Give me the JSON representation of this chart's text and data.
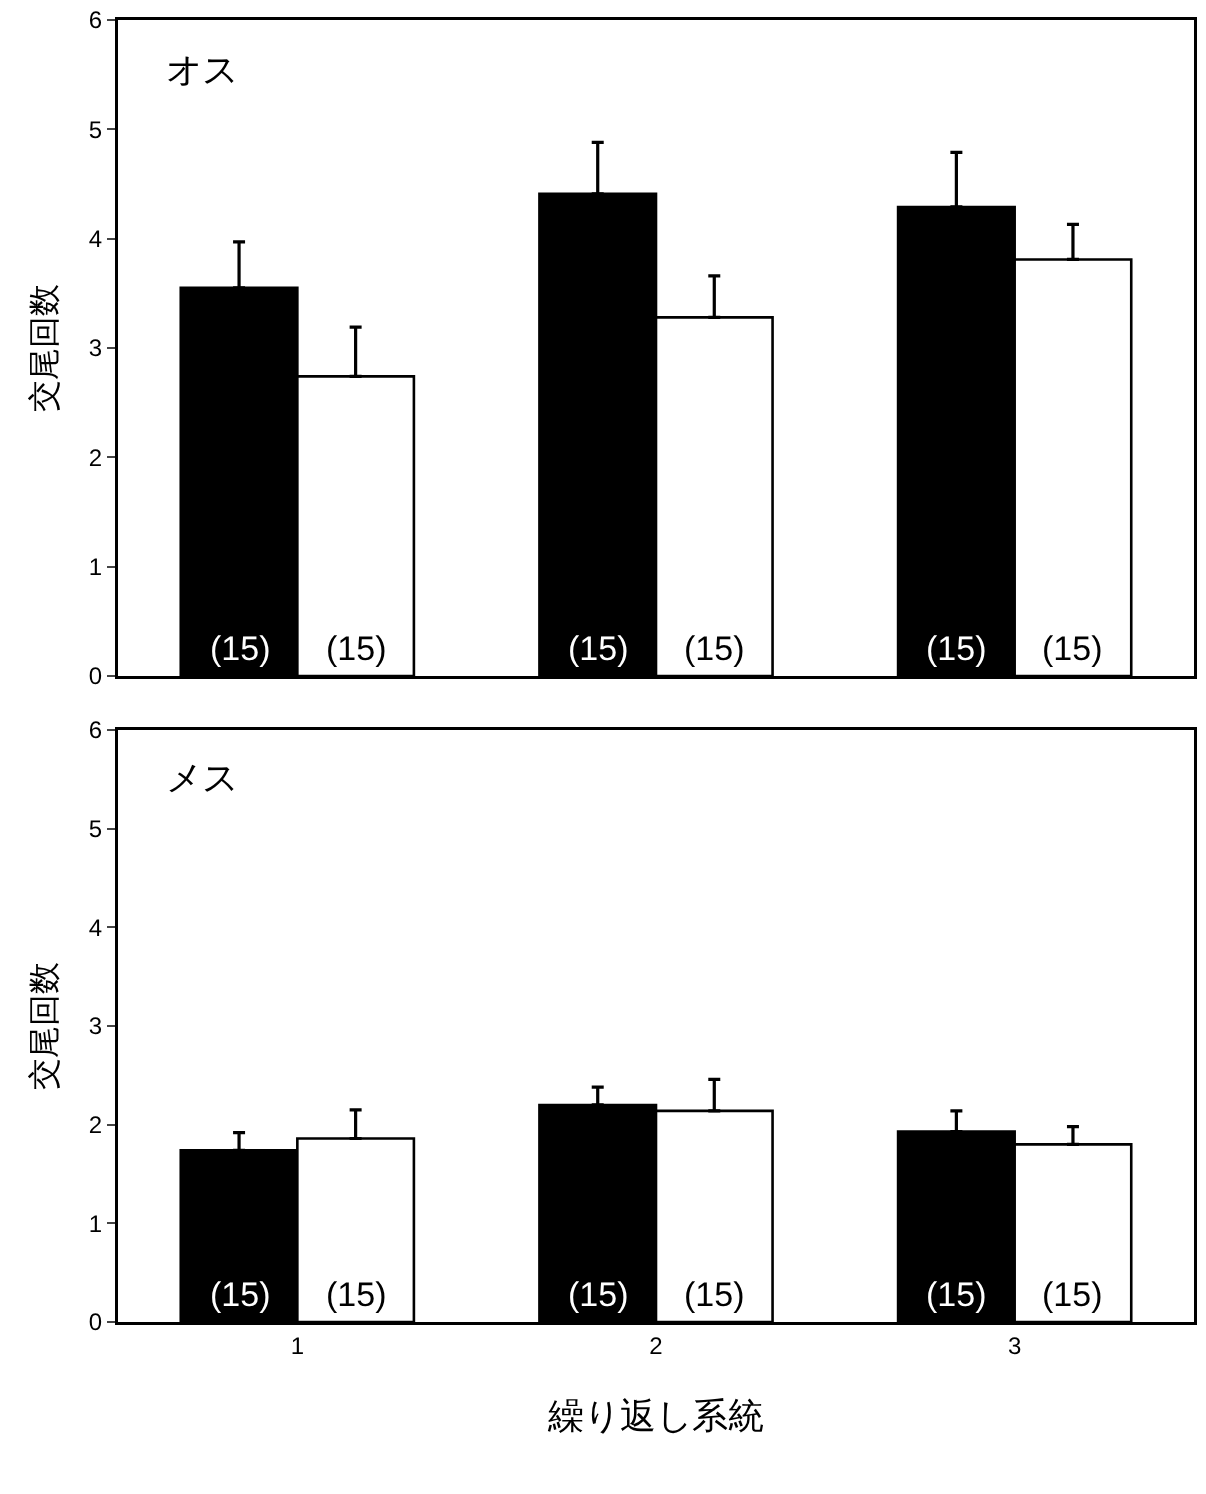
{
  "chart_data": [
    {
      "type": "bar",
      "title": "オス",
      "ylabel": "交尾回数",
      "categories": [
        "1",
        "2",
        "3"
      ],
      "ylim": [
        0,
        6
      ],
      "yticks": [
        0,
        1,
        2,
        3,
        4,
        5,
        6
      ],
      "tick_labels": "y",
      "series": [
        {
          "color": "#000000",
          "values": [
            3.55,
            4.41,
            4.29
          ],
          "errors": [
            [
              3.55,
              3.97
            ],
            [
              4.41,
              4.88
            ],
            [
              4.29,
              4.79
            ]
          ]
        },
        {
          "color": "#ffffff",
          "values": [
            2.74,
            3.28,
            3.81
          ],
          "errors": [
            [
              2.74,
              3.19
            ],
            [
              3.28,
              3.66
            ],
            [
              3.81,
              4.13
            ]
          ]
        }
      ],
      "annotations": [
        {
          "text": "(15)",
          "x": "1",
          "y": 0
        },
        {
          "text": "(15)",
          "x": "1",
          "y": 0
        },
        {
          "text": "(15)",
          "x": "2",
          "y": 0
        },
        {
          "text": "(15)",
          "x": "2",
          "y": 0
        },
        {
          "text": "(15)",
          "x": "3",
          "y": 0
        },
        {
          "text": "(15)",
          "x": "3",
          "y": 0
        }
      ]
    },
    {
      "type": "bar",
      "title": "メス",
      "ylabel": "交尾回数",
      "xlabel": "繰り返し系統",
      "categories": [
        "1",
        "2",
        "3"
      ],
      "ylim": [
        0,
        6
      ],
      "yticks": [
        0,
        1,
        2,
        3,
        4,
        5,
        6
      ],
      "series": [
        {
          "color": "#000000",
          "values": [
            1.74,
            2.2,
            1.93
          ],
          "errors": [
            [
              1.74,
              1.92
            ],
            [
              2.2,
              2.38
            ],
            [
              1.93,
              2.14
            ]
          ]
        },
        {
          "color": "#ffffff",
          "values": [
            1.86,
            2.14,
            1.8
          ],
          "errors": [
            [
              1.86,
              2.15
            ],
            [
              2.14,
              2.46
            ],
            [
              1.8,
              1.98
            ]
          ]
        }
      ],
      "annotations": [
        {
          "text": "(15)",
          "x": "1",
          "y": 0
        },
        {
          "text": "(15)",
          "x": "1",
          "y": 0
        },
        {
          "text": "(15)",
          "x": "2",
          "y": 0
        },
        {
          "text": "(15)",
          "x": "2",
          "y": 0
        },
        {
          "text": "(15)",
          "x": "3",
          "y": 0
        },
        {
          "text": "(15)",
          "x": "3",
          "y": 0
        }
      ]
    }
  ]
}
